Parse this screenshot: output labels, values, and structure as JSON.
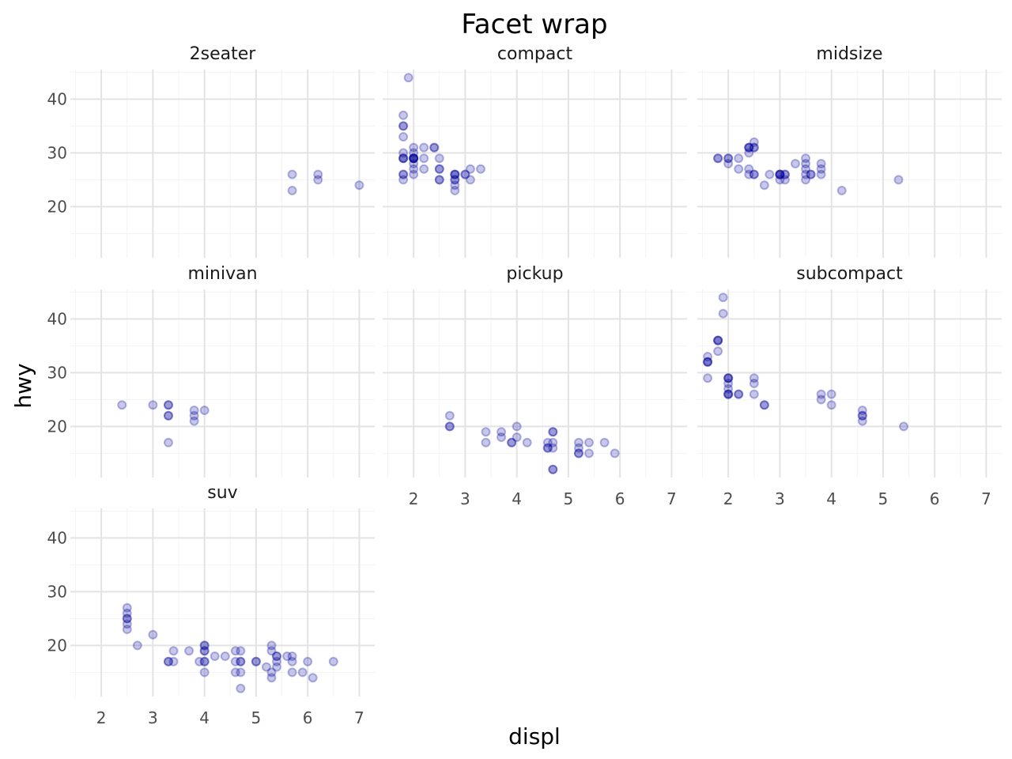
{
  "chart_data": {
    "type": "scatter",
    "title": "Facet wrap",
    "xlabel": "displ",
    "ylabel": "hwy",
    "xlim": [
      1.4,
      7.3
    ],
    "ylim": [
      10.5,
      45.5
    ],
    "x_ticks": [
      2,
      3,
      4,
      5,
      6,
      7
    ],
    "y_ticks": [
      20,
      30,
      40
    ],
    "grid": true,
    "point_color": "#000099",
    "point_alpha": 0.2,
    "panels": [
      {
        "label": "2seater",
        "points": [
          [
            5.7,
            26
          ],
          [
            5.7,
            23
          ],
          [
            6.2,
            26
          ],
          [
            6.2,
            25
          ],
          [
            7.0,
            24
          ]
        ]
      },
      {
        "label": "compact",
        "points": [
          [
            1.8,
            29
          ],
          [
            1.8,
            29
          ],
          [
            2.0,
            31
          ],
          [
            2.0,
            30
          ],
          [
            2.8,
            26
          ],
          [
            2.8,
            26
          ],
          [
            3.1,
            27
          ],
          [
            1.8,
            26
          ],
          [
            1.8,
            25
          ],
          [
            2.0,
            28
          ],
          [
            2.0,
            29
          ],
          [
            2.8,
            25
          ],
          [
            2.8,
            25
          ],
          [
            3.1,
            25
          ],
          [
            2.4,
            31
          ],
          [
            2.4,
            31
          ],
          [
            3.0,
            26
          ],
          [
            3.3,
            27
          ],
          [
            1.8,
            29
          ],
          [
            1.8,
            26
          ],
          [
            2.0,
            29
          ],
          [
            2.0,
            29
          ],
          [
            2.0,
            26
          ],
          [
            2.0,
            27
          ],
          [
            2.8,
            24
          ],
          [
            2.8,
            23
          ],
          [
            1.9,
            44
          ],
          [
            2.0,
            29
          ],
          [
            2.5,
            29
          ],
          [
            2.5,
            27
          ],
          [
            1.8,
            37
          ],
          [
            1.8,
            35
          ],
          [
            1.8,
            33
          ],
          [
            1.8,
            35
          ],
          [
            1.8,
            30
          ],
          [
            2.2,
            27
          ],
          [
            2.2,
            29
          ],
          [
            2.5,
            27
          ],
          [
            2.5,
            25
          ],
          [
            2.2,
            31
          ],
          [
            2.5,
            25
          ],
          [
            3.0,
            26
          ],
          [
            2.0,
            29
          ],
          [
            2.8,
            26
          ]
        ]
      },
      {
        "label": "midsize",
        "points": [
          [
            2.4,
            30
          ],
          [
            2.4,
            31
          ],
          [
            2.4,
            31
          ],
          [
            2.5,
            32
          ],
          [
            3.5,
            27
          ],
          [
            3.5,
            26
          ],
          [
            3.6,
            26
          ],
          [
            3.6,
            26
          ],
          [
            3.0,
            26
          ],
          [
            3.0,
            26
          ],
          [
            2.4,
            27
          ],
          [
            2.4,
            26
          ],
          [
            2.5,
            26
          ],
          [
            2.5,
            26
          ],
          [
            3.0,
            25
          ],
          [
            3.0,
            26
          ],
          [
            3.3,
            28
          ],
          [
            3.8,
            28
          ],
          [
            3.8,
            27
          ],
          [
            3.8,
            26
          ],
          [
            2.4,
            31
          ],
          [
            2.5,
            31
          ],
          [
            3.1,
            26
          ],
          [
            3.5,
            25
          ],
          [
            3.5,
            29
          ],
          [
            1.8,
            29
          ],
          [
            1.8,
            29
          ],
          [
            2.0,
            28
          ],
          [
            2.0,
            29
          ],
          [
            2.2,
            27
          ],
          [
            2.2,
            29
          ],
          [
            2.7,
            24
          ],
          [
            3.1,
            25
          ],
          [
            4.2,
            23
          ],
          [
            5.3,
            25
          ],
          [
            2.8,
            26
          ],
          [
            3.1,
            26
          ],
          [
            3.5,
            28
          ],
          [
            2.5,
            31
          ],
          [
            3.0,
            26
          ],
          [
            2.0,
            29
          ]
        ]
      },
      {
        "label": "minivan",
        "points": [
          [
            2.4,
            24
          ],
          [
            3.0,
            24
          ],
          [
            3.3,
            22
          ],
          [
            3.3,
            22
          ],
          [
            3.3,
            24
          ],
          [
            3.3,
            24
          ],
          [
            3.3,
            17
          ],
          [
            3.8,
            22
          ],
          [
            3.8,
            21
          ],
          [
            3.8,
            23
          ],
          [
            4.0,
            23
          ]
        ]
      },
      {
        "label": "pickup",
        "points": [
          [
            2.7,
            20
          ],
          [
            2.7,
            20
          ],
          [
            2.7,
            22
          ],
          [
            3.4,
            19
          ],
          [
            3.4,
            17
          ],
          [
            3.7,
            18
          ],
          [
            3.7,
            19
          ],
          [
            3.9,
            17
          ],
          [
            3.9,
            17
          ],
          [
            4.0,
            20
          ],
          [
            4.0,
            18
          ],
          [
            4.2,
            17
          ],
          [
            4.6,
            17
          ],
          [
            4.6,
            16
          ],
          [
            4.6,
            16
          ],
          [
            4.7,
            19
          ],
          [
            4.7,
            19
          ],
          [
            4.7,
            17
          ],
          [
            4.7,
            16
          ],
          [
            4.7,
            12
          ],
          [
            4.7,
            12
          ],
          [
            5.2,
            17
          ],
          [
            5.2,
            15
          ],
          [
            5.2,
            16
          ],
          [
            5.2,
            15
          ],
          [
            5.4,
            17
          ],
          [
            5.4,
            15
          ],
          [
            5.7,
            17
          ],
          [
            5.9,
            15
          ]
        ]
      },
      {
        "label": "subcompact",
        "points": [
          [
            1.6,
            33
          ],
          [
            1.6,
            32
          ],
          [
            1.6,
            32
          ],
          [
            1.6,
            29
          ],
          [
            1.6,
            32
          ],
          [
            1.8,
            34
          ],
          [
            1.8,
            36
          ],
          [
            1.8,
            36
          ],
          [
            1.9,
            44
          ],
          [
            1.9,
            41
          ],
          [
            2.0,
            29
          ],
          [
            2.0,
            26
          ],
          [
            2.0,
            29
          ],
          [
            2.0,
            29
          ],
          [
            2.0,
            27
          ],
          [
            2.0,
            28
          ],
          [
            2.0,
            26
          ],
          [
            2.2,
            26
          ],
          [
            2.5,
            26
          ],
          [
            2.5,
            28
          ],
          [
            2.5,
            29
          ],
          [
            2.7,
            24
          ],
          [
            2.7,
            24
          ],
          [
            3.8,
            26
          ],
          [
            3.8,
            25
          ],
          [
            4.0,
            26
          ],
          [
            4.0,
            24
          ],
          [
            4.6,
            21
          ],
          [
            4.6,
            22
          ],
          [
            4.6,
            23
          ],
          [
            4.6,
            22
          ],
          [
            5.4,
            20
          ],
          [
            2.0,
            26
          ],
          [
            2.2,
            26
          ],
          [
            1.8,
            36
          ]
        ]
      },
      {
        "label": "suv",
        "points": [
          [
            2.5,
            23
          ],
          [
            2.5,
            24
          ],
          [
            2.5,
            25
          ],
          [
            2.5,
            26
          ],
          [
            2.5,
            27
          ],
          [
            2.5,
            25
          ],
          [
            2.7,
            20
          ],
          [
            3.0,
            22
          ],
          [
            3.3,
            17
          ],
          [
            3.3,
            17
          ],
          [
            3.4,
            19
          ],
          [
            3.4,
            17
          ],
          [
            3.7,
            19
          ],
          [
            3.9,
            17
          ],
          [
            4.0,
            17
          ],
          [
            4.0,
            15
          ],
          [
            4.0,
            19
          ],
          [
            4.0,
            20
          ],
          [
            4.0,
            20
          ],
          [
            4.0,
            19
          ],
          [
            4.2,
            18
          ],
          [
            4.4,
            18
          ],
          [
            4.6,
            19
          ],
          [
            4.6,
            17
          ],
          [
            4.6,
            15
          ],
          [
            4.7,
            17
          ],
          [
            4.7,
            15
          ],
          [
            4.7,
            12
          ],
          [
            4.7,
            19
          ],
          [
            4.7,
            17
          ],
          [
            5.0,
            17
          ],
          [
            5.2,
            16
          ],
          [
            5.3,
            20
          ],
          [
            5.3,
            14
          ],
          [
            5.3,
            15
          ],
          [
            5.3,
            19
          ],
          [
            5.4,
            17
          ],
          [
            5.4,
            16
          ],
          [
            5.4,
            18
          ],
          [
            5.6,
            18
          ],
          [
            5.7,
            17
          ],
          [
            5.7,
            15
          ],
          [
            5.7,
            18
          ],
          [
            5.9,
            15
          ],
          [
            6.0,
            17
          ],
          [
            6.1,
            14
          ],
          [
            6.5,
            17
          ],
          [
            4.0,
            17
          ],
          [
            5.0,
            17
          ],
          [
            5.4,
            18
          ]
        ]
      }
    ]
  }
}
